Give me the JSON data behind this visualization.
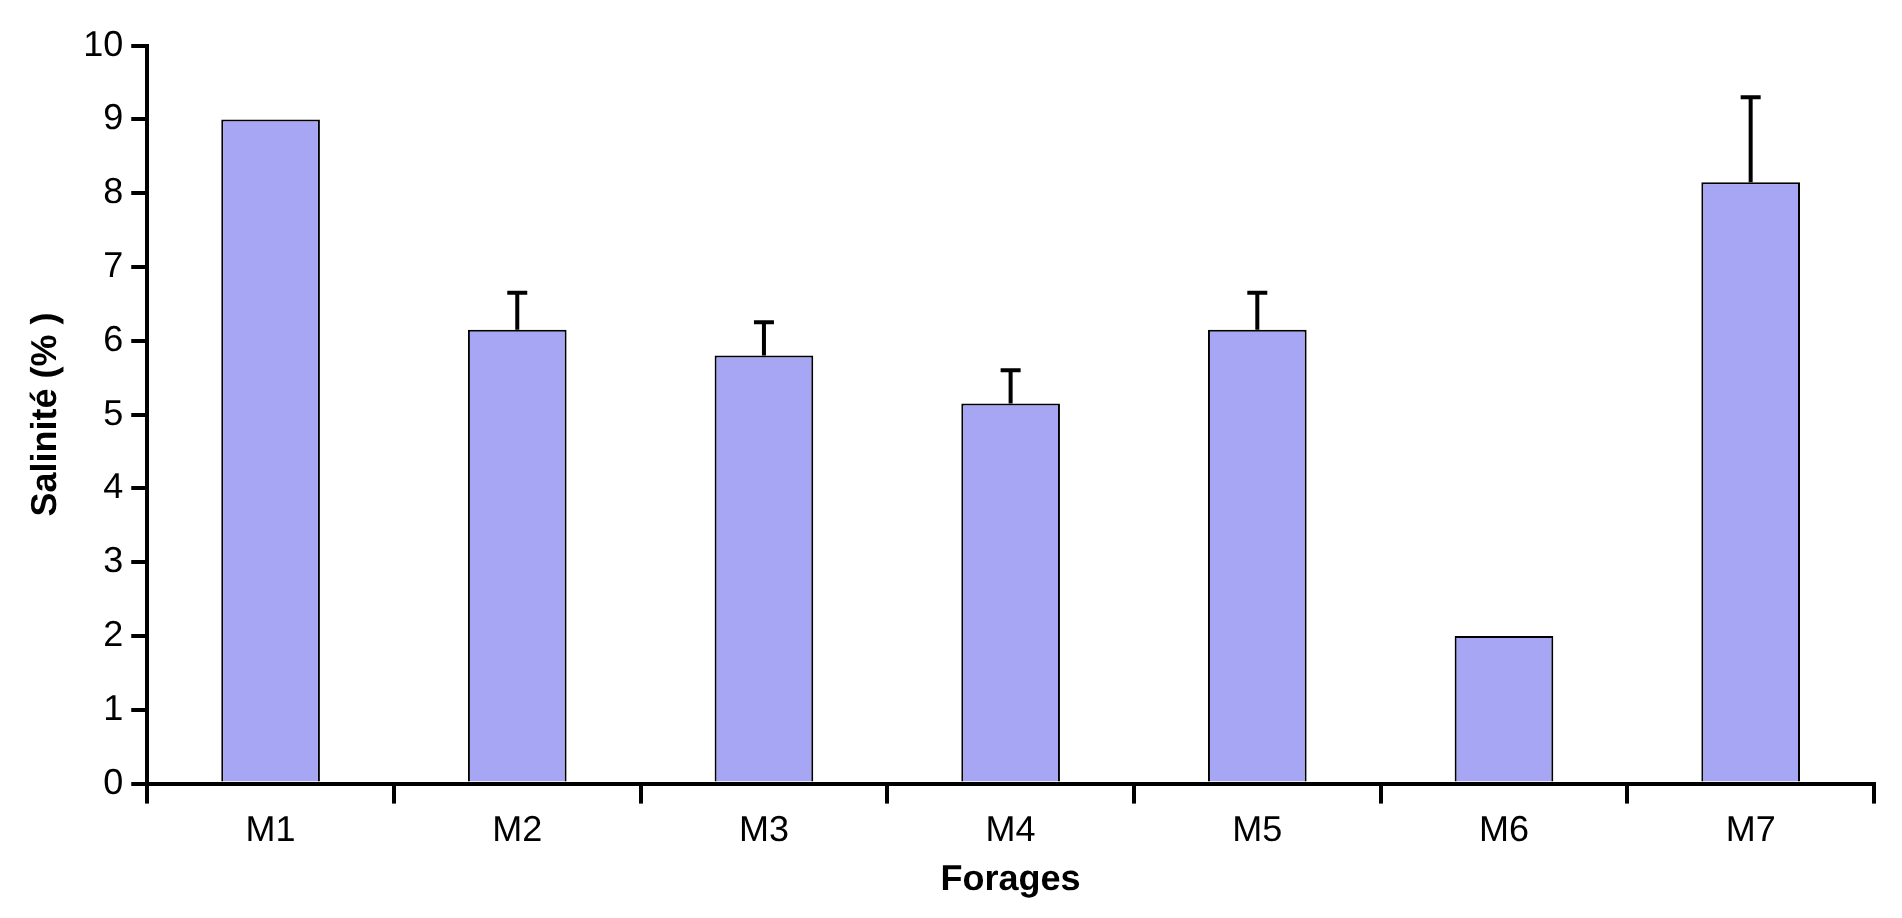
{
  "chart_data": {
    "type": "bar",
    "xlabel": "Forages",
    "ylabel": "Salinité (% )",
    "categories": [
      "M1",
      "M2",
      "M3",
      "M4",
      "M5",
      "M6",
      "M7"
    ],
    "values": [
      9.0,
      6.15,
      5.8,
      5.15,
      6.15,
      2.0,
      8.15
    ],
    "errors": [
      null,
      [
        6.15,
        6.65
      ],
      [
        5.8,
        6.25
      ],
      [
        5.15,
        5.6
      ],
      [
        6.15,
        6.65
      ],
      null,
      [
        8.15,
        9.3
      ]
    ],
    "color": "#a6a6f5",
    "ylim": [
      0,
      10
    ],
    "yticks": [
      0,
      1,
      2,
      3,
      4,
      5,
      6,
      7,
      8,
      9,
      10
    ]
  }
}
